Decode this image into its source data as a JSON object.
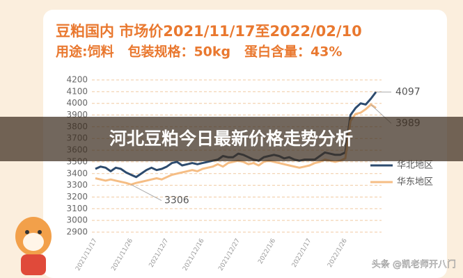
{
  "chart_data": {
    "type": "line",
    "title": "豆粕国内 市场价2021/11/17至2022/02/10",
    "subtitle": "用途:饲料   包装规格：50kg   蛋白含量：43%",
    "categories": [
      "2021/11/17",
      null,
      null,
      null,
      null,
      null,
      null,
      "2021/11/26",
      null,
      null,
      null,
      null,
      null,
      null,
      "2021/12/7",
      null,
      null,
      null,
      null,
      null,
      null,
      "2021/12/16",
      null,
      null,
      null,
      null,
      null,
      null,
      "2021/12/27",
      null,
      null,
      null,
      null,
      null,
      null,
      "2022/1/6",
      null,
      null,
      null,
      null,
      null,
      null,
      "2022/1/17",
      null,
      null,
      null,
      null,
      null,
      null,
      "2022/1/26",
      null,
      null,
      null,
      null,
      null,
      null
    ],
    "series": [
      {
        "name": "华北地区",
        "color": "#2d4b6e",
        "values": [
          3440,
          3460,
          3450,
          3420,
          3450,
          3440,
          3410,
          3390,
          3370,
          3400,
          3430,
          3450,
          3430,
          3440,
          3460,
          3490,
          3500,
          3470,
          3480,
          3490,
          3480,
          3490,
          3500,
          3510,
          3520,
          3550,
          3540,
          3540,
          3570,
          3560,
          3540,
          3520,
          3510,
          3540,
          3550,
          3560,
          3550,
          3530,
          3540,
          3520,
          3510,
          3520,
          3520,
          3520,
          3550,
          3580,
          3570,
          3560,
          3560,
          3580,
          3900,
          3960,
          4000,
          3990,
          4040,
          4097
        ]
      },
      {
        "name": "华东地区",
        "color": "#f5bd84",
        "values": [
          3360,
          3350,
          3340,
          3350,
          3340,
          3330,
          3320,
          3306,
          3320,
          3330,
          3340,
          3350,
          3360,
          3350,
          3370,
          3390,
          3400,
          3410,
          3420,
          3430,
          3420,
          3440,
          3450,
          3460,
          3480,
          3460,
          3490,
          3500,
          3510,
          3500,
          3480,
          3490,
          3470,
          3500,
          3510,
          3500,
          3490,
          3480,
          3470,
          3460,
          3450,
          3460,
          3470,
          3490,
          3500,
          3520,
          3510,
          3500,
          3510,
          3530,
          3850,
          3910,
          3920,
          3950,
          3989,
          3960
        ]
      }
    ],
    "ylim": [
      2900,
      4200
    ],
    "yticks": [
      2900,
      3000,
      3100,
      3200,
      3300,
      3400,
      3500,
      3600,
      3700,
      3800,
      3900,
      4000,
      4100,
      4200
    ],
    "grid": true,
    "legend": "right"
  },
  "banner": "河北豆粕今日最新价格走势分析",
  "watermark": "头条 @凯老师开八门"
}
